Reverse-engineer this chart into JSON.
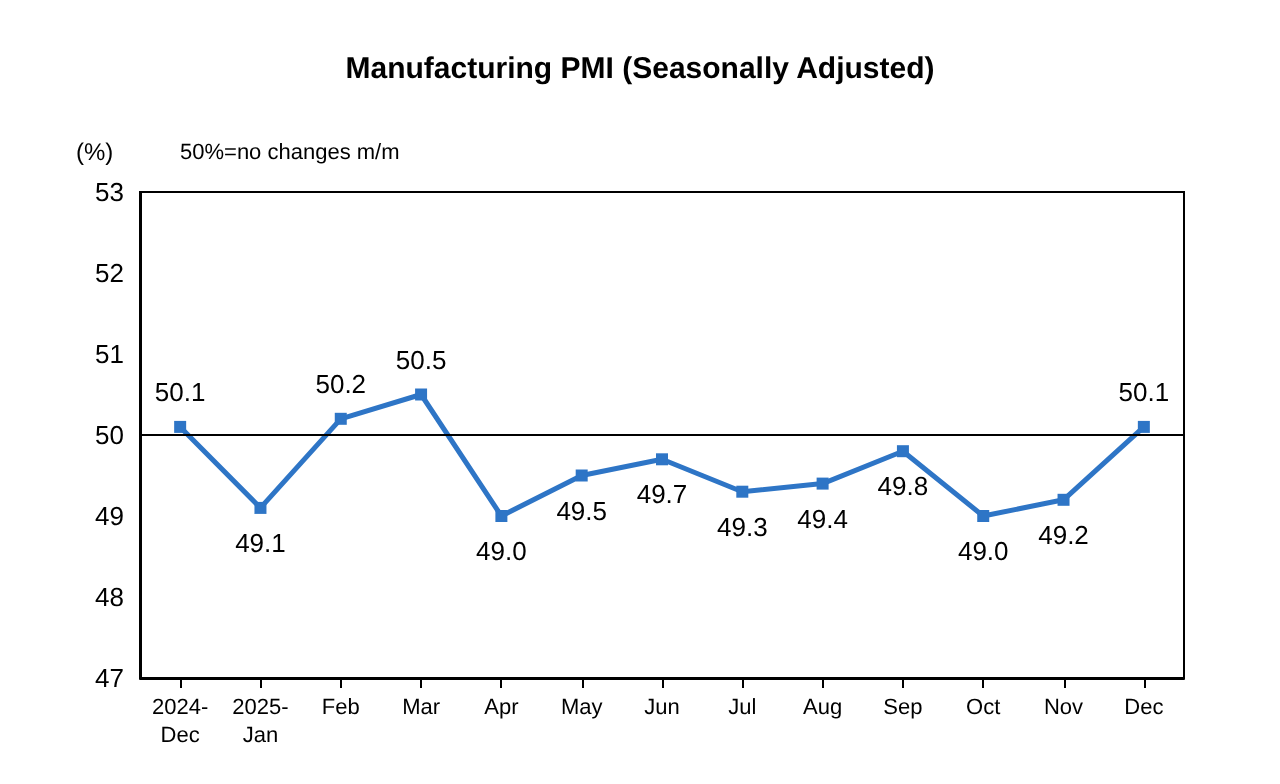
{
  "chart_data": {
    "type": "line",
    "title": "Manufacturing PMI (Seasonally Adjusted)",
    "ylabel": "(%)",
    "annotations": [
      "50%=no changes m/m"
    ],
    "categories": [
      "2024-\nDec",
      "2025-\nJan",
      "Feb",
      "Mar",
      "Apr",
      "May",
      "Jun",
      "Jul",
      "Aug",
      "Sep",
      "Oct",
      "Nov",
      "Dec"
    ],
    "series": [
      {
        "color": "#2e75c6",
        "values": [
          50.1,
          49.1,
          50.2,
          50.5,
          49.0,
          49.5,
          49.7,
          49.3,
          49.4,
          49.8,
          49.0,
          49.2,
          50.1
        ],
        "value_labels": [
          "50.1",
          "49.1",
          "50.2",
          "50.5",
          "49.0",
          "49.5",
          "49.7",
          "49.3",
          "49.4",
          "49.8",
          "49.0",
          "49.2",
          "50.1"
        ]
      }
    ],
    "ylim": [
      47,
      53
    ],
    "yticks": [
      47,
      48,
      49,
      50,
      51,
      52,
      53
    ],
    "ref_lines": [
      {
        "axis": "y",
        "value": 50,
        "color": "#000000"
      }
    ],
    "marker": "square",
    "line_style": "solid",
    "grid": false
  }
}
